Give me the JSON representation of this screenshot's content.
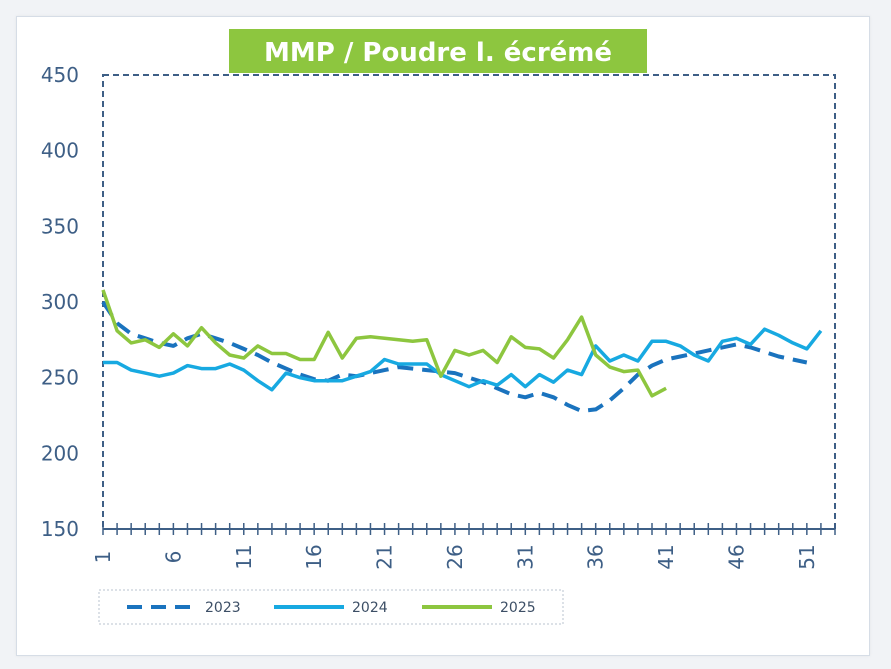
{
  "chart_data": {
    "type": "line",
    "title": "MMP / Poudre l. écrémé",
    "xlabel": "",
    "ylabel": "",
    "xlim": [
      1,
      53
    ],
    "ylim": [
      150,
      450
    ],
    "y_ticks": [
      150,
      200,
      250,
      300,
      350,
      400,
      450
    ],
    "x_tick_labels": [
      1,
      6,
      11,
      16,
      21,
      26,
      31,
      36,
      41,
      46,
      51
    ],
    "grid": false,
    "legend_position": "bottom",
    "colors": {
      "title_bg": "#8dc63f",
      "axis": "#3e5f86"
    },
    "series": [
      {
        "name": "2023",
        "color": "#1a73be",
        "dash": true,
        "values": [
          300,
          286,
          279,
          276,
          273,
          271,
          276,
          279,
          276,
          273,
          269,
          265,
          260,
          256,
          252,
          249,
          248,
          252,
          251,
          253,
          255,
          257,
          256,
          255,
          254,
          253,
          250,
          247,
          243,
          239,
          237,
          240,
          237,
          232,
          228,
          229,
          235,
          243,
          252,
          258,
          262,
          264,
          266,
          268,
          270,
          272,
          270,
          267,
          264,
          262,
          260,
          null
        ]
      },
      {
        "name": "2024",
        "color": "#17a9e1",
        "dash": false,
        "values": [
          260,
          260,
          255,
          253,
          251,
          253,
          258,
          256,
          256,
          259,
          255,
          248,
          242,
          253,
          250,
          248,
          248,
          248,
          251,
          254,
          262,
          259,
          259,
          259,
          252,
          248,
          244,
          248,
          245,
          252,
          244,
          252,
          247,
          255,
          252,
          271,
          261,
          265,
          261,
          274,
          274,
          271,
          265,
          261,
          274,
          276,
          272,
          282,
          278,
          273,
          269,
          281
        ]
      },
      {
        "name": "2025",
        "color": "#8dc63f",
        "dash": false,
        "values": [
          308,
          281,
          273,
          275,
          270,
          279,
          271,
          283,
          273,
          265,
          263,
          271,
          266,
          266,
          262,
          262,
          280,
          263,
          276,
          277,
          276,
          275,
          274,
          275,
          251,
          268,
          265,
          268,
          260,
          277,
          270,
          269,
          263,
          275,
          290,
          265,
          257,
          254,
          255,
          238,
          243,
          null
        ]
      }
    ]
  }
}
